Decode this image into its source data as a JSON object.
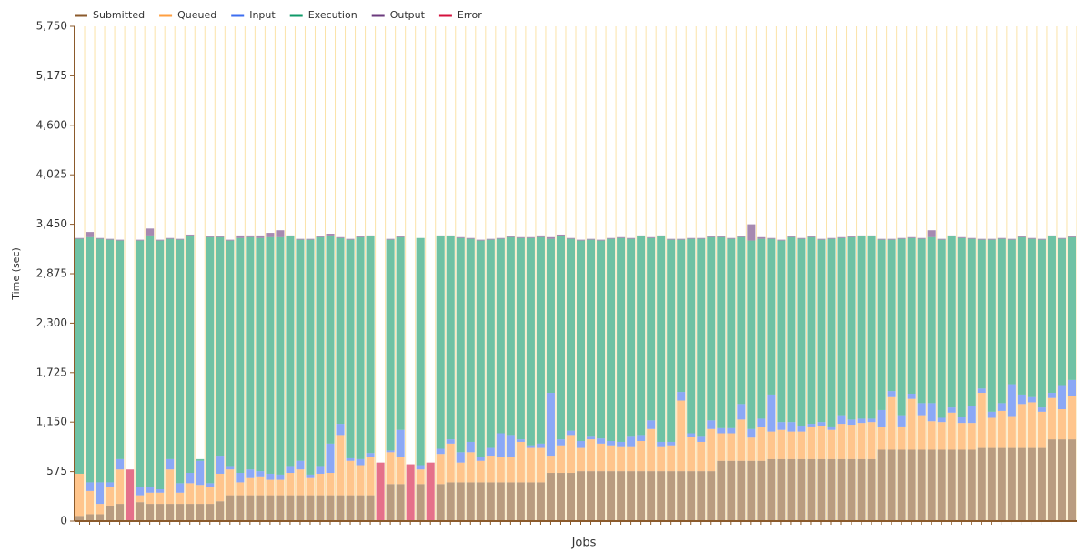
{
  "chart_data": {
    "type": "stacked_bar",
    "xlabel": "Jobs",
    "ylabel": "Time (sec)",
    "ylim": [
      0,
      5750
    ],
    "yticks": [
      0,
      575,
      {
        "value": 1150,
        "label": "1,150"
      },
      {
        "value": 1725,
        "label": "1,725"
      },
      {
        "value": 2300,
        "label": "2,300"
      },
      {
        "value": 2875,
        "label": "2,875"
      },
      {
        "value": 3450,
        "label": "3,450"
      },
      {
        "value": 4025,
        "label": "4,025"
      },
      {
        "value": 4600,
        "label": "4,600"
      },
      {
        "value": 5175,
        "label": "5,175"
      },
      {
        "value": 5750,
        "label": "5,750"
      }
    ],
    "grid": true,
    "legend": "top-left",
    "series": [
      {
        "name": "Submitted",
        "color": "#8b5a2b",
        "values": [
          60,
          80,
          80,
          180,
          200,
          null,
          220,
          200,
          200,
          200,
          200,
          200,
          200,
          200,
          230,
          300,
          300,
          300,
          300,
          300,
          300,
          300,
          300,
          300,
          300,
          300,
          300,
          300,
          300,
          300,
          null,
          430,
          430,
          null,
          430,
          null,
          430,
          450,
          450,
          450,
          450,
          450,
          450,
          450,
          450,
          450,
          450,
          560,
          560,
          560,
          580,
          580,
          580,
          580,
          580,
          580,
          580,
          580,
          580,
          580,
          580,
          580,
          580,
          580,
          700,
          700,
          700,
          700,
          700,
          720,
          720,
          720,
          720,
          720,
          720,
          720,
          720,
          720,
          720,
          720,
          830,
          830,
          830,
          830,
          830,
          830,
          830,
          830,
          830,
          830,
          850,
          850,
          850,
          850,
          850,
          850,
          850,
          950,
          950,
          950
        ]
      },
      {
        "name": "Queued",
        "color": "#ff9f40",
        "values": [
          490,
          270,
          120,
          220,
          400,
          null,
          80,
          130,
          130,
          400,
          130,
          240,
          220,
          200,
          320,
          300,
          150,
          200,
          220,
          180,
          180,
          260,
          300,
          200,
          250,
          260,
          700,
          400,
          350,
          440,
          null,
          370,
          320,
          null,
          170,
          null,
          350,
          450,
          230,
          350,
          250,
          310,
          290,
          300,
          470,
          400,
          400,
          200,
          320,
          440,
          270,
          370,
          320,
          300,
          290,
          290,
          350,
          490,
          290,
          300,
          820,
          400,
          340,
          490,
          320,
          320,
          480,
          270,
          390,
          320,
          340,
          320,
          320,
          380,
          390,
          340,
          410,
          400,
          420,
          430,
          260,
          610,
          270,
          590,
          400,
          330,
          320,
          430,
          310,
          310,
          640,
          350,
          430,
          370,
          510,
          530,
          420,
          480,
          350,
          500
        ]
      },
      {
        "name": "Input",
        "color": "#3d6ef0",
        "values": [
          0,
          100,
          250,
          50,
          120,
          null,
          100,
          70,
          40,
          120,
          110,
          120,
          280,
          40,
          210,
          40,
          110,
          100,
          60,
          70,
          60,
          80,
          100,
          40,
          90,
          340,
          130,
          30,
          70,
          50,
          null,
          20,
          310,
          null,
          50,
          null,
          60,
          50,
          120,
          120,
          50,
          90,
          280,
          250,
          30,
          30,
          50,
          730,
          70,
          50,
          80,
          40,
          60,
          50,
          50,
          120,
          70,
          100,
          50,
          40,
          100,
          40,
          70,
          100,
          60,
          60,
          180,
          100,
          100,
          430,
          90,
          110,
          70,
          30,
          40,
          40,
          100,
          60,
          50,
          40,
          200,
          70,
          130,
          60,
          140,
          210,
          50,
          60,
          70,
          200,
          50,
          70,
          90,
          370,
          110,
          60,
          50,
          60,
          280,
          190
        ]
      },
      {
        "name": "Execution",
        "color": "#0f9a68",
        "values": [
          2730,
          2850,
          2830,
          2820,
          2540,
          null,
          2860,
          2920,
          2890,
          2560,
          2830,
          2760,
          20,
          2860,
          2540,
          2620,
          2730,
          2700,
          2710,
          2750,
          2760,
          2670,
          2570,
          2730,
          2660,
          2420,
          2160,
          2540,
          2580,
          2520,
          null,
          2450,
          2240,
          null,
          2640,
          null,
          2470,
          2360,
          2490,
          2360,
          2510,
          2420,
          2260,
          2300,
          2340,
          2410,
          2400,
          1790,
          2360,
          2230,
          2330,
          2280,
          2300,
          2350,
          2370,
          2290,
          2310,
          2120,
          2390,
          2350,
          1770,
          2260,
          2290,
          2130,
          2220,
          2200,
          1940,
          2190,
          2090,
          1810,
          2110,
          2150,
          2170,
          2170,
          2120,
          2180,
          2060,
          2120,
          2120,
          2120,
          1980,
          1760,
          2050,
          1810,
          1910,
          1930,
          2070,
          1990,
          2080,
          1940,
          1730,
          2000,
          1910,
          1680,
          1830,
          1840,
          1950,
          1820,
          1700,
          1660
        ]
      },
      {
        "name": "Output",
        "color": "#6b3a7d",
        "values": [
          10,
          60,
          10,
          10,
          10,
          null,
          10,
          80,
          10,
          10,
          10,
          10,
          0,
          10,
          10,
          10,
          30,
          20,
          30,
          50,
          80,
          10,
          10,
          10,
          10,
          20,
          10,
          10,
          10,
          10,
          null,
          10,
          10,
          null,
          0,
          null,
          10,
          10,
          10,
          10,
          10,
          10,
          10,
          10,
          10,
          10,
          20,
          20,
          20,
          10,
          10,
          10,
          10,
          10,
          10,
          10,
          10,
          10,
          10,
          10,
          10,
          10,
          10,
          10,
          10,
          10,
          10,
          190,
          20,
          10,
          10,
          10,
          10,
          10,
          10,
          10,
          10,
          10,
          10,
          10,
          10,
          10,
          10,
          10,
          10,
          80,
          10,
          10,
          10,
          10,
          10,
          10,
          10,
          10,
          10,
          10,
          10,
          10,
          10,
          10
        ]
      },
      {
        "name": "Error",
        "color": "#d4103c",
        "values": [
          null,
          null,
          null,
          null,
          null,
          600,
          null,
          null,
          null,
          null,
          null,
          null,
          null,
          null,
          null,
          null,
          null,
          null,
          null,
          null,
          null,
          null,
          null,
          null,
          null,
          null,
          null,
          null,
          null,
          null,
          680,
          null,
          null,
          660,
          null,
          680,
          null,
          null,
          null,
          null,
          null,
          null,
          null,
          null,
          null,
          null,
          null,
          null,
          null,
          null,
          null,
          null,
          null,
          null,
          null,
          null,
          null,
          null,
          null,
          null,
          null,
          null,
          null,
          null,
          null,
          null,
          null,
          null,
          null,
          null,
          null,
          null,
          null,
          null,
          null,
          null,
          null,
          null,
          null,
          null,
          null,
          null,
          null,
          null,
          null,
          null,
          null,
          null,
          null,
          null,
          null,
          null,
          null,
          null,
          null,
          null,
          null,
          null,
          null,
          null
        ]
      }
    ]
  }
}
